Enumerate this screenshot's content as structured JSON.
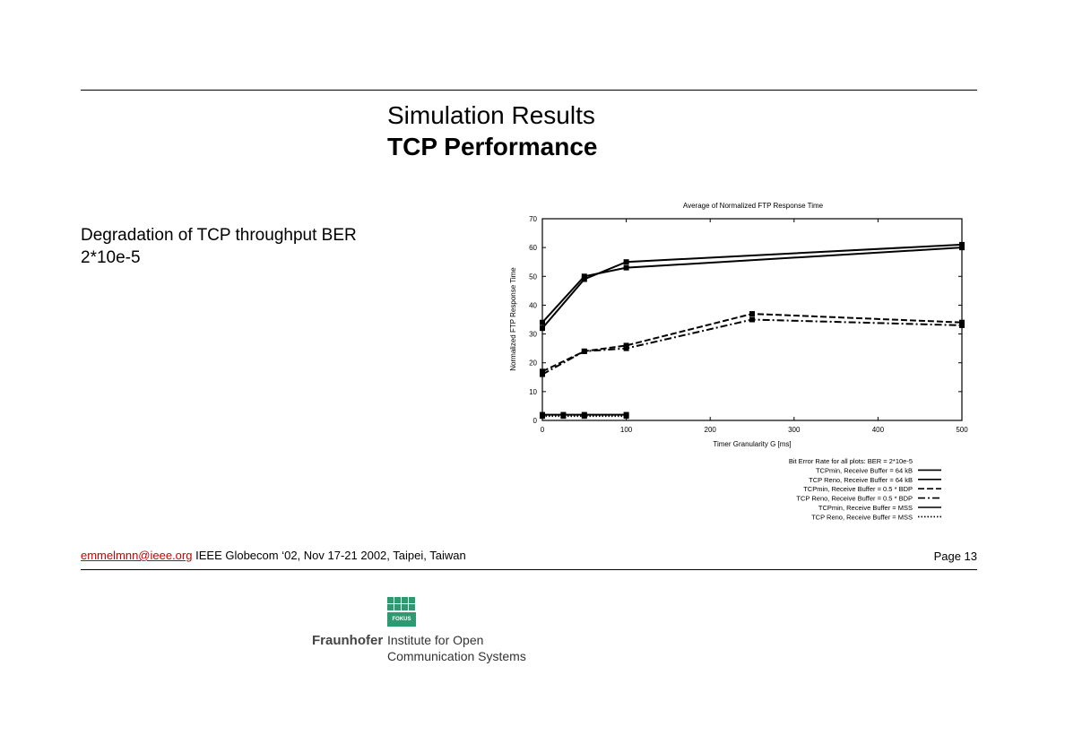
{
  "header": {
    "title": "Simulation Results",
    "subtitle": "TCP Performance"
  },
  "body": {
    "description": "Degradation of TCP throughput BER 2*10e-5"
  },
  "footer": {
    "email": "emmelmnn@ieee.org",
    "event": "IEEE Globecom ‘02, Nov 17-21 2002, Taipei, Taiwan",
    "page": "Page 13"
  },
  "logo": {
    "brand": "Fraunhofer",
    "badge": "FOKUS",
    "line1": "Institute for Open",
    "line2": "Communication Systems",
    "color": "#2f9a72"
  },
  "chart_data": {
    "type": "line",
    "title": "Average of Normalized FTP Response Time",
    "xlabel": "Timer Granularity G [ms]",
    "ylabel": "Normalized FTP Response Time",
    "xlim": [
      0,
      500
    ],
    "ylim": [
      0,
      70
    ],
    "xticks": [
      0,
      100,
      200,
      300,
      400,
      500
    ],
    "yticks": [
      0,
      10,
      20,
      30,
      40,
      50,
      60,
      70
    ],
    "legend_title": "Bit Error Rate for all plots: BER = 2*10e-5",
    "legend_position": "below",
    "series": [
      {
        "name": "TCPmin, Receive Buffer = 64 kB",
        "style": "solid",
        "x": [
          0,
          50,
          100,
          500
        ],
        "y": [
          34,
          50,
          53,
          60
        ]
      },
      {
        "name": "TCP Reno, Receive Buffer = 64 kB",
        "style": "solid",
        "x": [
          0,
          50,
          100,
          500
        ],
        "y": [
          32,
          49,
          55,
          61
        ]
      },
      {
        "name": "TCPmin, Receive Buffer = 0.5 * BDP",
        "style": "dash",
        "x": [
          0,
          50,
          100,
          250,
          500
        ],
        "y": [
          17,
          24,
          26,
          37,
          34
        ]
      },
      {
        "name": "TCP Reno, Receive Buffer = 0.5 * BDP",
        "style": "dashdot",
        "x": [
          0,
          50,
          100,
          250,
          500
        ],
        "y": [
          16,
          24,
          25,
          35,
          33
        ]
      },
      {
        "name": "TCPmin, Receive Buffer = MSS",
        "style": "solid",
        "x": [
          0,
          25,
          50,
          100
        ],
        "y": [
          2,
          2,
          2,
          2
        ]
      },
      {
        "name": "TCP Reno, Receive Buffer = MSS",
        "style": "dot",
        "x": [
          0,
          25,
          50,
          100
        ],
        "y": [
          1.5,
          1.5,
          1.5,
          1.5
        ]
      }
    ]
  }
}
